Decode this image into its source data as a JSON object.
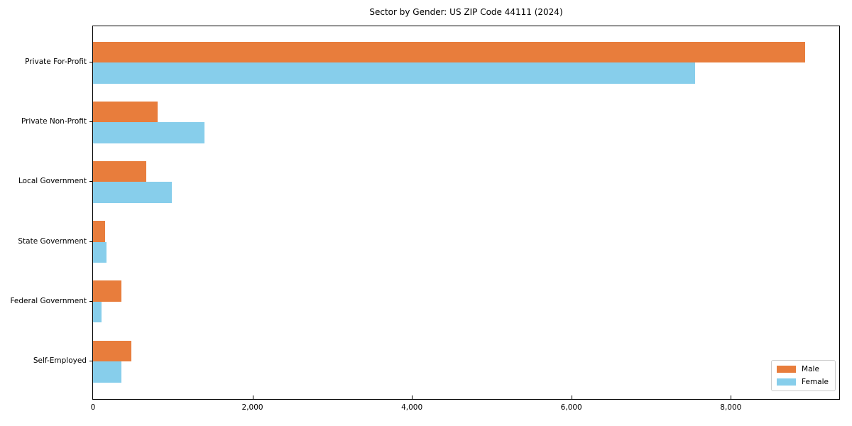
{
  "title": "Sector by Gender: US ZIP Code 44111 (2024)",
  "chart_data": {
    "type": "bar",
    "orientation": "horizontal",
    "title": "Sector by Gender: US ZIP Code 44111 (2024)",
    "categories": [
      "Private For-Profit",
      "Private Non-Profit",
      "Local Government",
      "State Government",
      "Federal Government",
      "Self-Employed"
    ],
    "series": [
      {
        "name": "Male",
        "color": "#e87d3c",
        "values": [
          8930,
          810,
          670,
          155,
          355,
          480
        ]
      },
      {
        "name": "Female",
        "color": "#87ceeb",
        "values": [
          7550,
          1400,
          985,
          170,
          110,
          360
        ]
      }
    ],
    "xlabel": "",
    "ylabel": "",
    "xlim": [
      0,
      9360
    ],
    "xticks": [
      0,
      2000,
      4000,
      6000,
      8000
    ],
    "xtick_labels": [
      "0",
      "2,000",
      "4,000",
      "6,000",
      "8,000"
    ],
    "grid": false,
    "legend_position": "lower right",
    "axis_color": "#000000",
    "legend_border_color": "#cccccc",
    "background_color": "#ffffff"
  }
}
